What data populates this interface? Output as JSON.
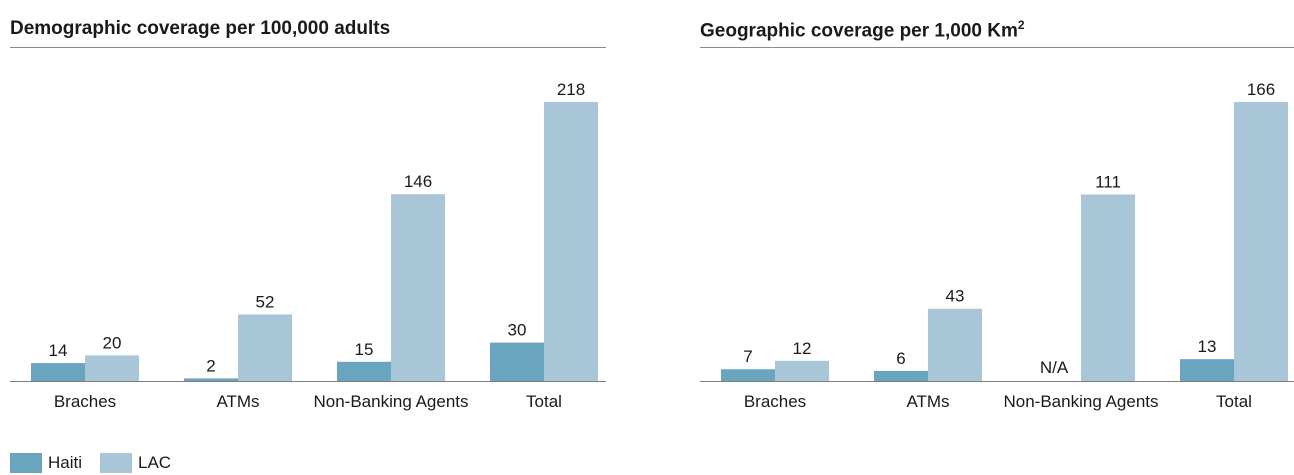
{
  "colors": {
    "haiti": "#6aa5bf",
    "lac": "#a9c6d9",
    "axis": "#7f7f7f"
  },
  "legend": {
    "items": [
      {
        "label": "Haiti"
      },
      {
        "label": "LAC"
      }
    ]
  },
  "chart_data": [
    {
      "type": "bar",
      "title": "Demographic coverage per 100,000 adults",
      "categories": [
        "Braches",
        "ATMs",
        "Non-Banking Agents",
        "Total"
      ],
      "series": [
        {
          "name": "Haiti",
          "values": [
            14,
            2,
            15,
            30
          ],
          "labels": [
            "14",
            "2",
            "15",
            "30"
          ]
        },
        {
          "name": "LAC",
          "values": [
            20,
            52,
            146,
            218
          ],
          "labels": [
            "20",
            "52",
            "146",
            "218"
          ]
        }
      ],
      "ylim": [
        0,
        218
      ],
      "grid": false,
      "legend": "bottom-left"
    },
    {
      "type": "bar",
      "title": "Geographic coverage per 1,000 Km",
      "title_sup": "2",
      "categories": [
        "Braches",
        "ATMs",
        "Non-Banking Agents",
        "Total"
      ],
      "series": [
        {
          "name": "Haiti",
          "values": [
            7,
            6,
            null,
            13
          ],
          "labels": [
            "7",
            "6",
            "N/A",
            "13"
          ]
        },
        {
          "name": "LAC",
          "values": [
            12,
            43,
            111,
            166
          ],
          "labels": [
            "12",
            "43",
            "111",
            "166"
          ]
        }
      ],
      "ylim": [
        0,
        166
      ],
      "grid": false,
      "legend": "bottom-left"
    }
  ]
}
